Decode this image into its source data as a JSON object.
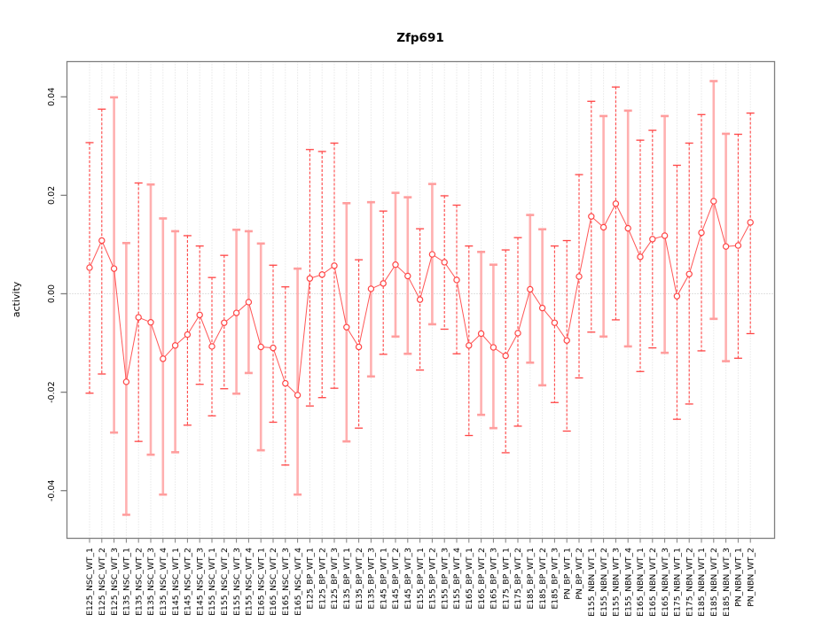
{
  "chart_data": {
    "type": "line",
    "title": "Zfp691",
    "xlabel": "",
    "ylabel": "activity",
    "ylim": [
      -0.0496,
      0.0472
    ],
    "yticks": [
      -0.04,
      -0.02,
      0.0,
      0.02,
      0.04
    ],
    "ytick_labels": [
      "-0.04",
      "-0.02",
      "0.00",
      "0.02",
      "0.04"
    ],
    "grid": "vertical dotted gridline at every category; dotted horizontal line at y=0",
    "legend": "none",
    "marker": "open-circle",
    "categories": [
      "E125_NSC_WT_1",
      "E125_NSC_WT_2",
      "E125_NSC_WT_3",
      "E135_NSC_WT_1",
      "E135_NSC_WT_2",
      "E135_NSC_WT_3",
      "E135_NSC_WT_4",
      "E145_NSC_WT_1",
      "E145_NSC_WT_2",
      "E145_NSC_WT_3",
      "E155_NSC_WT_1",
      "E155_NSC_WT_2",
      "E155_NSC_WT_3",
      "E155_NSC_WT_4",
      "E165_NSC_WT_1",
      "E165_NSC_WT_2",
      "E165_NSC_WT_3",
      "E165_NSC_WT_4",
      "E125_BP_WT_1",
      "E125_BP_WT_2",
      "E125_BP_WT_3",
      "E135_BP_WT_1",
      "E135_BP_WT_2",
      "E135_BP_WT_3",
      "E145_BP_WT_1",
      "E145_BP_WT_2",
      "E145_BP_WT_3",
      "E155_BP_WT_1",
      "E155_BP_WT_2",
      "E155_BP_WT_3",
      "E155_BP_WT_4",
      "E165_BP_WT_1",
      "E165_BP_WT_2",
      "E165_BP_WT_3",
      "E175_BP_WT_1",
      "E175_BP_WT_2",
      "E185_BP_WT_1",
      "E185_BP_WT_2",
      "E185_BP_WT_3",
      "PN_BP_WT_1",
      "PN_BP_WT_2",
      "E155_NBN_WT_1",
      "E155_NBN_WT_2",
      "E155_NBN_WT_3",
      "E155_NBN_WT_4",
      "E165_NBN_WT_1",
      "E165_NBN_WT_2",
      "E165_NBN_WT_3",
      "E175_NBN_WT_1",
      "E175_NBN_WT_2",
      "E185_NBN_WT_1",
      "E185_NBN_WT_2",
      "E185_NBN_WT_3",
      "PN_NBN_WT_1",
      "PN_NBN_WT_2"
    ],
    "series": [
      {
        "name": "activity",
        "values": [
          0.0053,
          0.0108,
          0.0051,
          -0.0179,
          -0.0048,
          -0.0058,
          -0.0132,
          -0.0105,
          -0.0083,
          -0.0043,
          -0.0107,
          -0.0059,
          -0.0039,
          -0.0017,
          -0.0108,
          -0.011,
          -0.0182,
          -0.0206,
          0.0031,
          0.0039,
          0.0057,
          -0.0068,
          -0.0108,
          0.001,
          0.0021,
          0.0059,
          0.0036,
          -0.0012,
          0.008,
          0.0064,
          0.0028,
          -0.0105,
          -0.0081,
          -0.0109,
          -0.0126,
          -0.008,
          0.0009,
          -0.0029,
          -0.0059,
          -0.0095,
          0.0035,
          0.0157,
          0.0135,
          0.0183,
          0.0133,
          0.0075,
          0.0111,
          0.0118,
          -0.0005,
          0.004,
          0.0124,
          0.0188,
          0.0096,
          0.0098,
          0.0145
        ]
      },
      {
        "name": "ci_lower",
        "values": [
          -0.0202,
          -0.0163,
          -0.0282,
          -0.0449,
          -0.03,
          -0.0327,
          -0.0408,
          -0.0322,
          -0.0267,
          -0.0184,
          -0.0248,
          -0.0193,
          -0.0203,
          -0.0161,
          -0.0318,
          -0.0261,
          -0.0348,
          -0.0408,
          -0.0228,
          -0.0211,
          -0.0192,
          -0.03,
          -0.0273,
          -0.0168,
          -0.0123,
          -0.0087,
          -0.0122,
          -0.0155,
          -0.0062,
          -0.0072,
          -0.0122,
          -0.0288,
          -0.0246,
          -0.0273,
          -0.0323,
          -0.0269,
          -0.014,
          -0.0186,
          -0.0221,
          -0.0279,
          -0.0171,
          -0.0078,
          -0.0087,
          -0.0053,
          -0.0107,
          -0.0158,
          -0.011,
          -0.012,
          -0.0255,
          -0.0224,
          -0.0116,
          -0.0051,
          -0.0137,
          -0.0131,
          -0.0081
        ]
      },
      {
        "name": "ci_upper",
        "values": [
          0.0307,
          0.0375,
          0.0399,
          0.0103,
          0.0225,
          0.0222,
          0.0153,
          0.0127,
          0.0118,
          0.0097,
          0.0033,
          0.0078,
          0.013,
          0.0127,
          0.0102,
          0.0058,
          0.0014,
          0.0051,
          0.0293,
          0.0289,
          0.0306,
          0.0184,
          0.0069,
          0.0186,
          0.0168,
          0.0205,
          0.0196,
          0.0132,
          0.0223,
          0.0199,
          0.018,
          0.0097,
          0.0085,
          0.0059,
          0.0089,
          0.0114,
          0.016,
          0.0131,
          0.0097,
          0.0108,
          0.0242,
          0.0391,
          0.0361,
          0.042,
          0.0372,
          0.0312,
          0.0332,
          0.0361,
          0.0261,
          0.0306,
          0.0364,
          0.0432,
          0.0325,
          0.0324,
          0.0367
        ]
      }
    ],
    "bar_shade": [
      "dark",
      "dark",
      "light",
      "light",
      "dark",
      "light",
      "light",
      "light",
      "dark",
      "dark",
      "dark",
      "dark",
      "light",
      "light",
      "light",
      "dark",
      "dark",
      "light",
      "dark",
      "dark",
      "dark",
      "light",
      "dark",
      "light",
      "dark",
      "light",
      "light",
      "dark",
      "light",
      "dark",
      "dark",
      "dark",
      "light",
      "light",
      "dark",
      "dark",
      "light",
      "light",
      "dark",
      "dark",
      "dark",
      "dark",
      "light",
      "dark",
      "light",
      "dark",
      "dark",
      "light",
      "dark",
      "dark",
      "dark",
      "light",
      "light",
      "dark",
      "dark"
    ]
  },
  "colors": {
    "bar_dark": "#ff4545",
    "bar_light": "#ffb0b0",
    "cap_light": "#ff9e9e",
    "point_stroke": "#ff4545",
    "point_fill": "#ffffff",
    "join_line": "#ff5656",
    "grid": "#dcdcdc",
    "zero_line": "#c6c6c6",
    "box": "#7f7f7f",
    "text": "#000000"
  }
}
